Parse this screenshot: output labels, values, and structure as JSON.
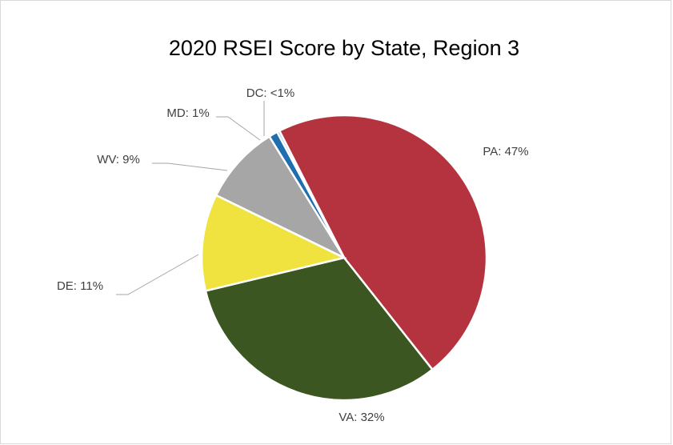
{
  "chart_data": {
    "type": "pie",
    "title": "2020 RSEI Score by State, Region 3",
    "values": [
      47,
      32,
      11,
      9,
      1,
      0.3
    ],
    "value_labels": [
      "PA: 47%",
      "VA: 32%",
      "DE: 11%",
      "WV: 9%",
      "MD: 1%",
      "DC: <1%"
    ],
    "colors": [
      "#b5333f",
      "#3b5620",
      "#f0e340",
      "#a6a6a6",
      "#1f6fb0",
      "#9dc3e6"
    ]
  }
}
